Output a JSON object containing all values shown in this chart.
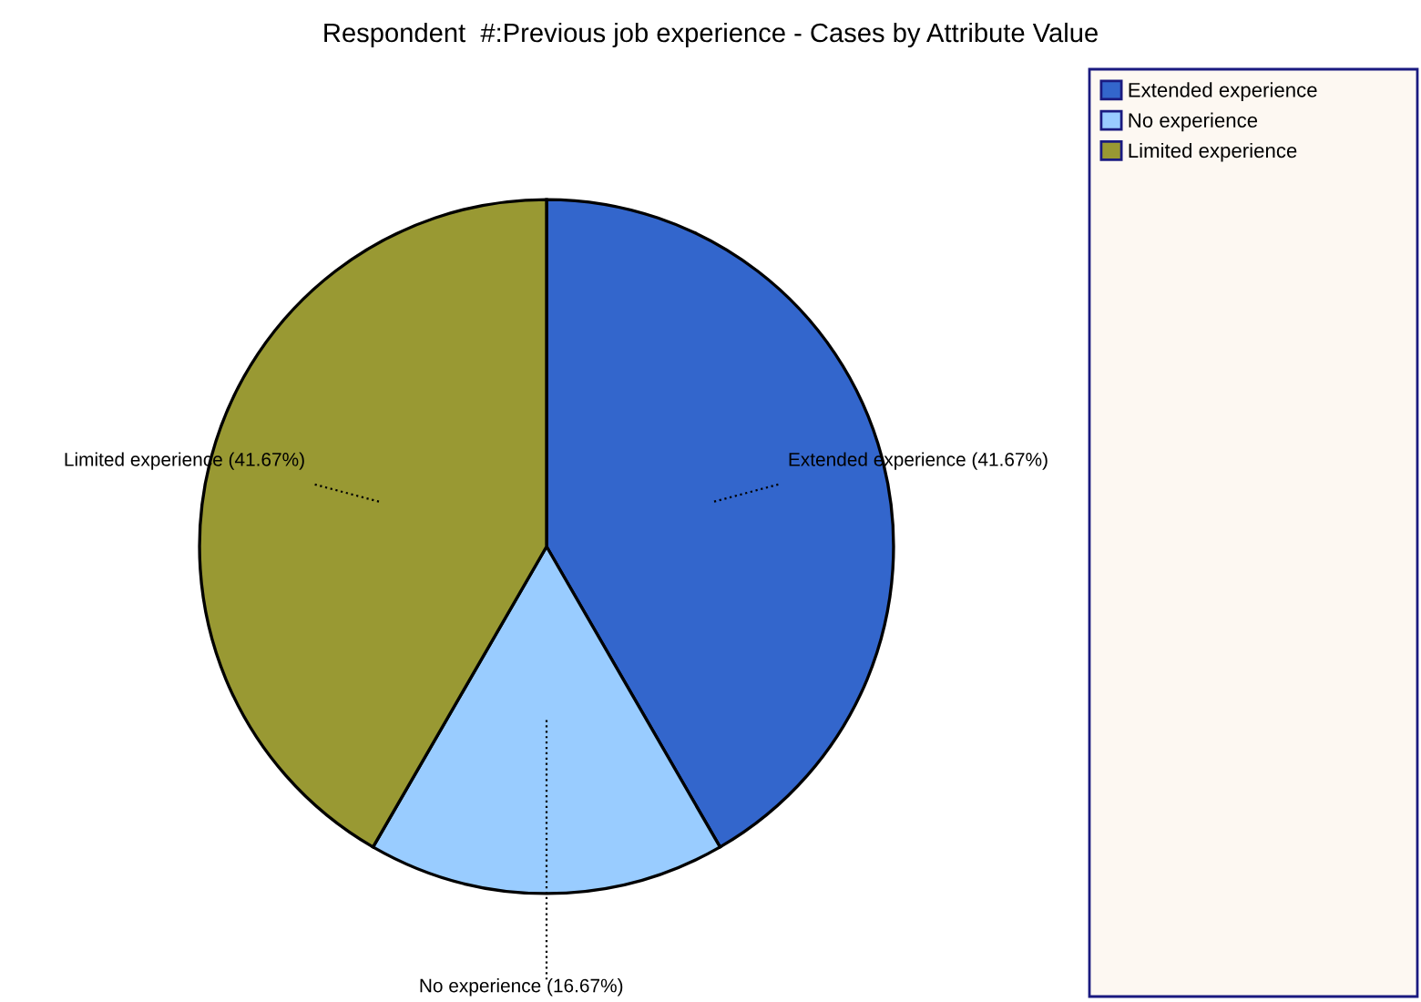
{
  "chart_data": {
    "type": "pie",
    "title": "Respondent  #:Previous job experience - Cases by Attribute Value",
    "categories": [
      "Extended experience",
      "No experience",
      "Limited experience"
    ],
    "values": [
      41.67,
      16.67,
      41.67
    ],
    "colors": [
      "#3366cc",
      "#99ccff",
      "#999933"
    ],
    "value_labels": [
      "(41.67%)",
      "(16.67%)",
      "(41.67%)"
    ],
    "legend": "top right"
  }
}
